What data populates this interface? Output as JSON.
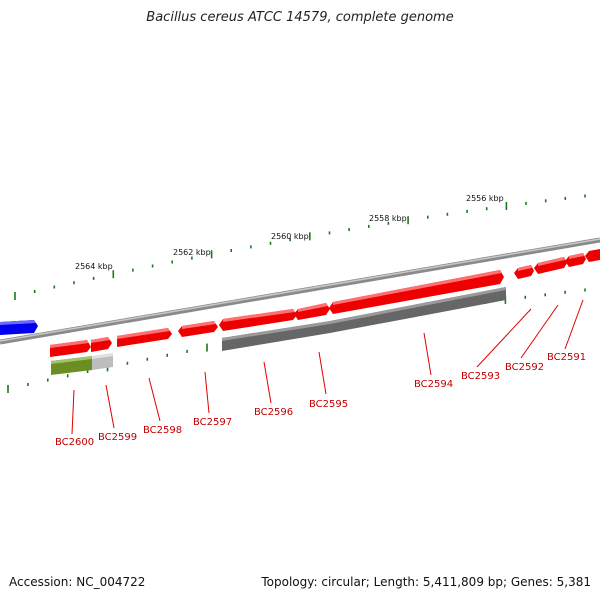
{
  "title": "Bacillus cereus ATCC 14579, complete genome",
  "footer": {
    "accession": "Accession: NC_004722",
    "stats": "Topology: circular; Length: 5,411,809 bp; Genes: 5,381"
  },
  "colors": {
    "gene_red": "#ff0000",
    "gene_blue": "#0000ff",
    "gene_olive": "#6b8e23",
    "gene_gray": "#707070",
    "tick_green": "#1a7a1a",
    "label_red": "#c00000"
  },
  "kbp_labels": [
    "2564 kbp",
    "2562 kbp",
    "2560 kbp",
    "2558 kbp",
    "2556 kbp"
  ],
  "gene_labels": [
    "BC2600",
    "BC2599",
    "BC2598",
    "BC2597",
    "BC2596",
    "BC2595",
    "BC2594",
    "BC2593",
    "BC2592",
    "BC2591"
  ]
}
